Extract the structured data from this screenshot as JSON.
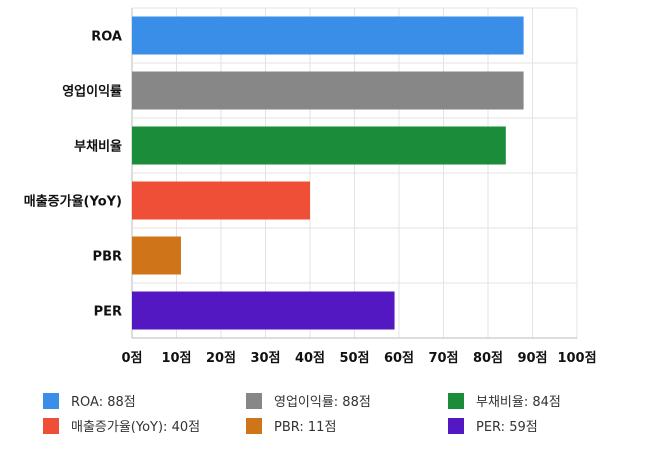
{
  "chart_data": {
    "type": "bar",
    "orientation": "horizontal",
    "categories": [
      "ROA",
      "영업이익률",
      "부채비율",
      "매출증가율(YoY)",
      "PBR",
      "PER"
    ],
    "values": [
      88,
      88,
      84,
      40,
      11,
      59
    ],
    "colors": [
      "#3a8ee8",
      "#878787",
      "#1a8c3a",
      "#ef4e37",
      "#cf7419",
      "#5318c2"
    ],
    "xlim": [
      0,
      100
    ],
    "xticks": [
      0,
      10,
      20,
      30,
      40,
      50,
      60,
      70,
      80,
      90,
      100
    ],
    "tick_labels": [
      "0점",
      "10점",
      "20점",
      "30점",
      "40점",
      "50점",
      "60점",
      "70점",
      "80점",
      "90점",
      "100점"
    ],
    "grid": true,
    "legend": {
      "position": "bottom",
      "entries": [
        {
          "label": "ROA: 88점",
          "color": "#3a8ee8"
        },
        {
          "label": "영업이익률: 88점",
          "color": "#878787"
        },
        {
          "label": "부채비율: 84점",
          "color": "#1a8c3a"
        },
        {
          "label": "매출증가율(YoY): 40점",
          "color": "#ef4e37"
        },
        {
          "label": "PBR: 11점",
          "color": "#cf7419"
        },
        {
          "label": "PER: 59점",
          "color": "#5318c2"
        }
      ]
    }
  }
}
